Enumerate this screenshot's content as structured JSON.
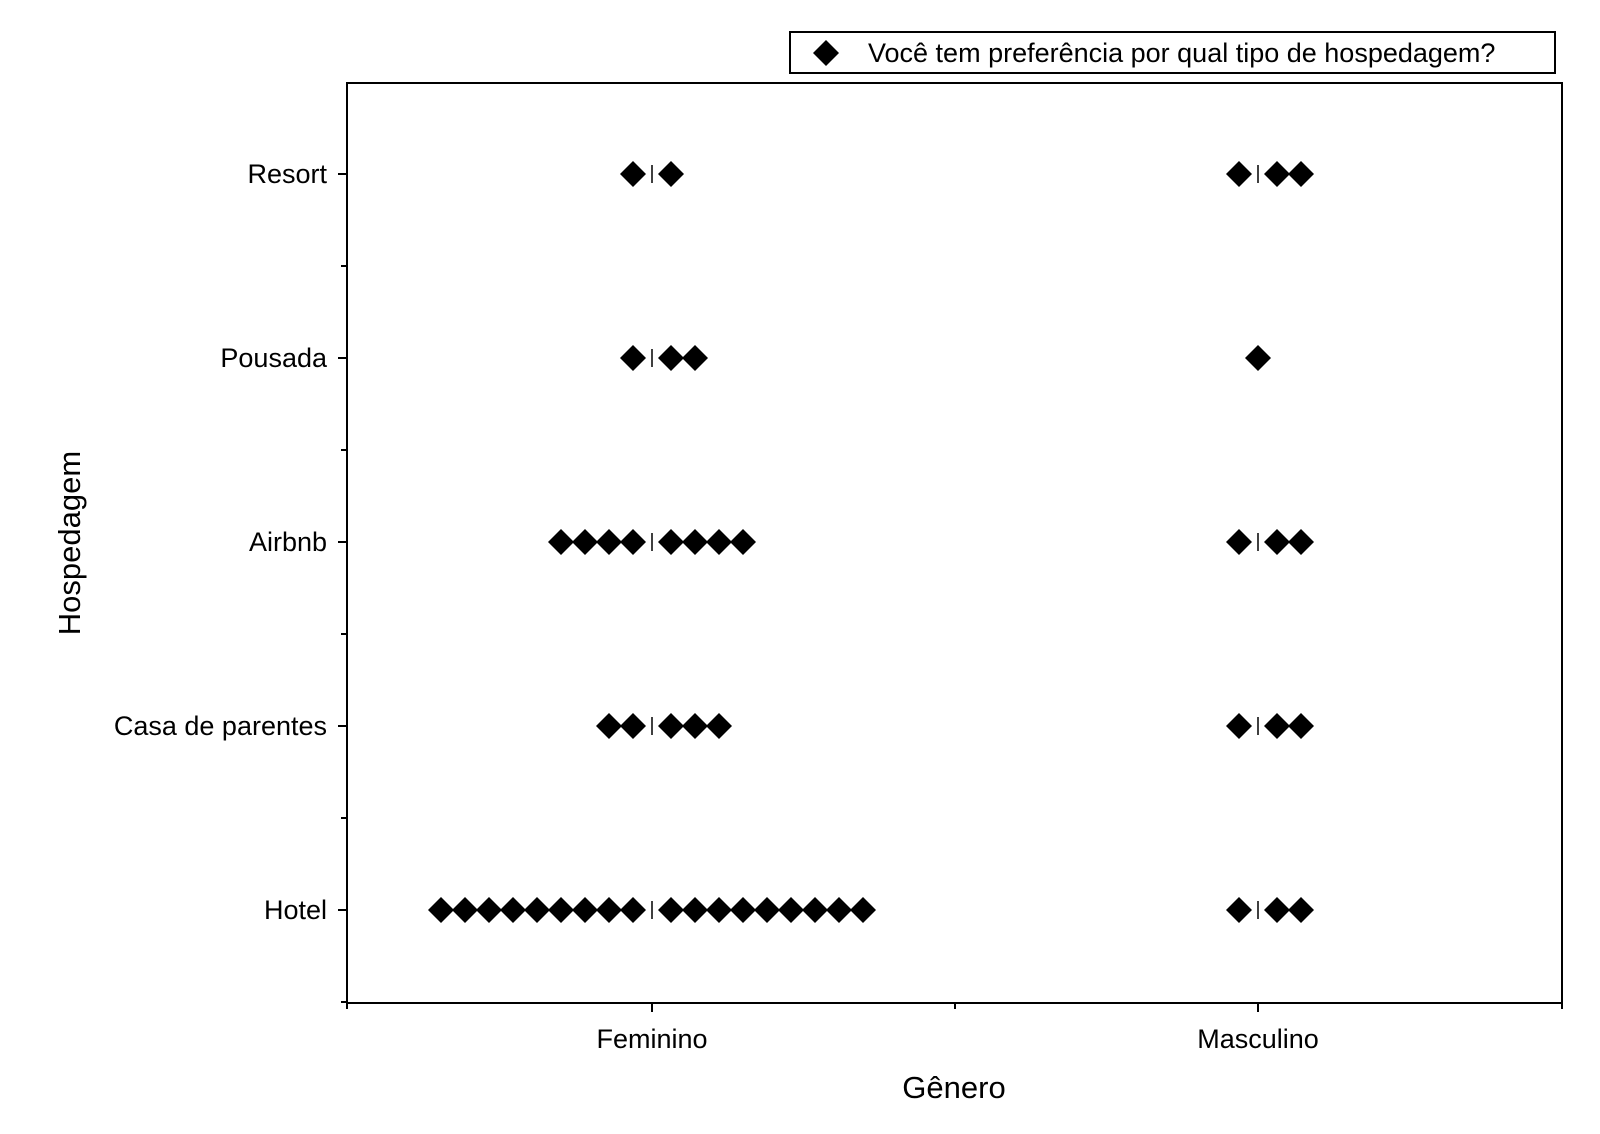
{
  "chart_data": {
    "type": "scatter",
    "style": "dot-plot",
    "marker": "diamond",
    "marker_color": "#000000",
    "xlabel": "Gênero",
    "ylabel": "Hospedagem",
    "x_categories": [
      "Feminino",
      "Masculino"
    ],
    "y_categories": [
      "Hotel",
      "Casa de parentes",
      "Airbnb",
      "Pousada",
      "Resort"
    ],
    "legend": {
      "label": "Você tem preferência por qual tipo de hospedagem?",
      "position": "top-right"
    },
    "grid": false,
    "series": [
      {
        "name": "Você tem preferência por qual tipo de hospedagem?",
        "counts": {
          "Feminino": {
            "Resort": 2,
            "Pousada": 3,
            "Airbnb": 8,
            "Casa de parentes": 5,
            "Hotel": 18
          },
          "Masculino": {
            "Resort": 3,
            "Pousada": 1,
            "Airbnb": 3,
            "Casa de parentes": 3,
            "Hotel": 3
          }
        }
      }
    ]
  }
}
